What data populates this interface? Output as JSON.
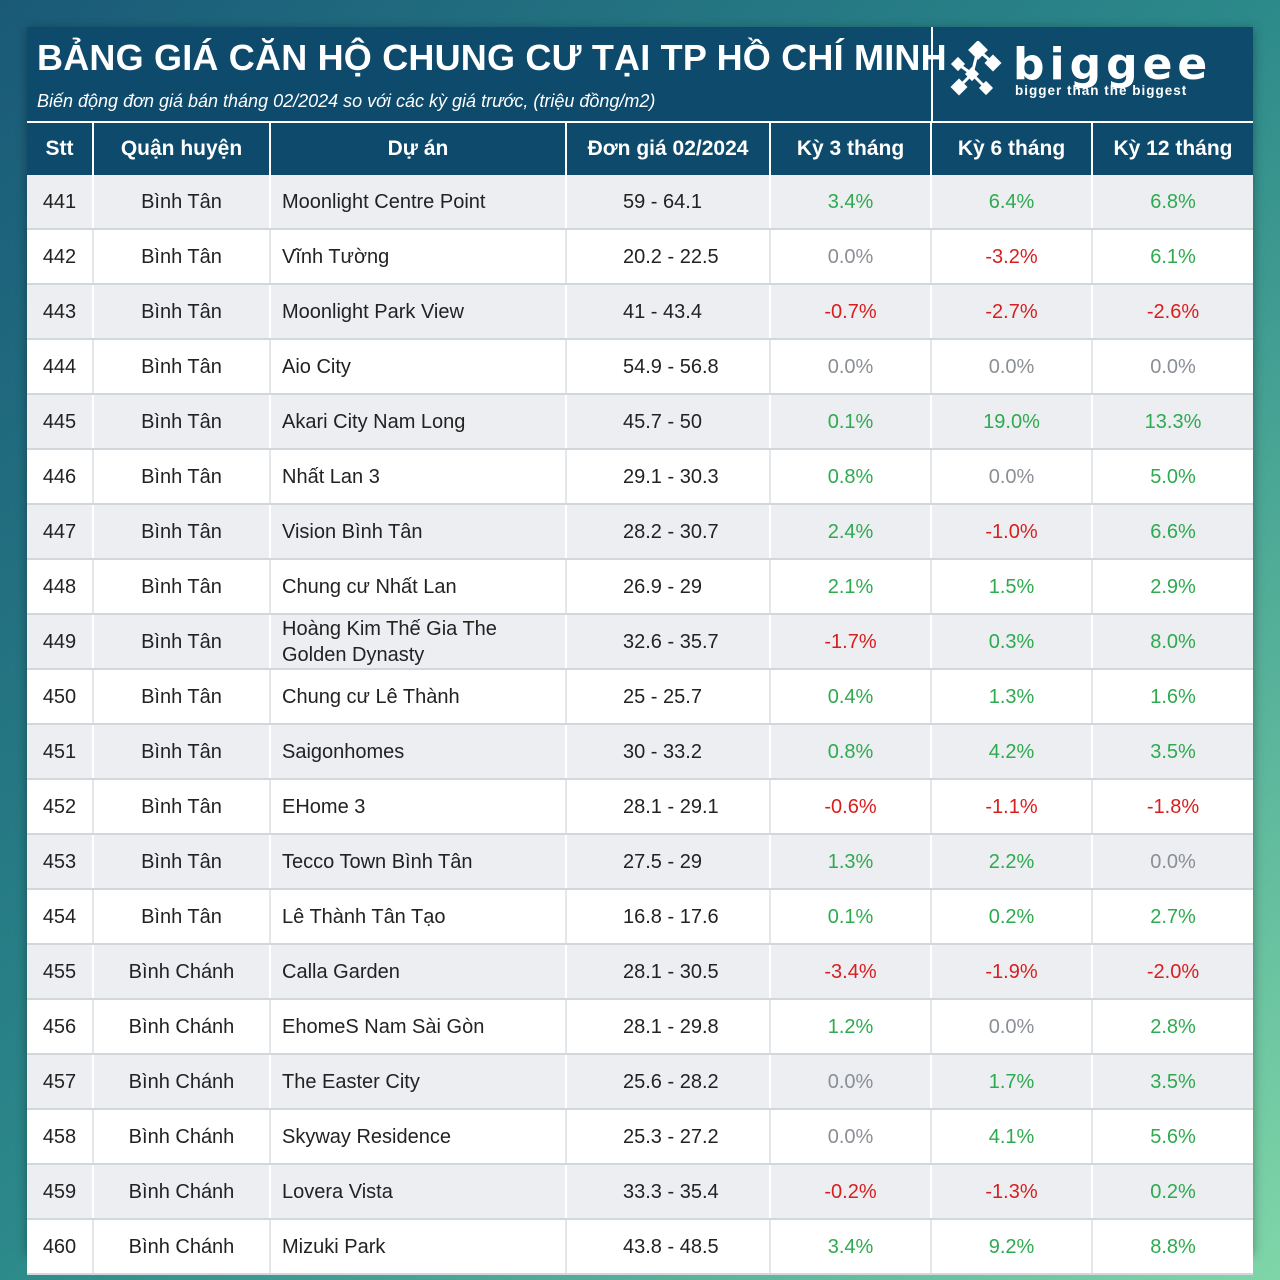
{
  "header": {
    "title": "BẢNG GIÁ CĂN HỘ CHUNG CƯ TẠI TP HỒ CHÍ MINH",
    "subtitle": "Biến động đơn giá bán tháng 02/2024 so với các kỳ giá trước, (triệu đồng/m2)"
  },
  "logo": {
    "word": "biggee",
    "tagline": "bigger than the biggest",
    "icon": "biggee-logo-icon"
  },
  "colors": {
    "header_bg": "#0d4a6b",
    "positive": "#2eaa4f",
    "negative": "#d81e1e",
    "zero": "#8a8f95"
  },
  "table": {
    "columns": [
      "Stt",
      "Quận huyện",
      "Dự án",
      "Đơn giá 02/2024",
      "Kỳ 3 tháng",
      "Kỳ 6 tháng",
      "Kỳ 12 tháng"
    ],
    "rows": [
      [
        "441",
        "Bình Tân",
        "Moonlight Centre Point",
        "59 - 64.1",
        "3.4%",
        "6.4%",
        "6.8%"
      ],
      [
        "442",
        "Bình Tân",
        "Vĩnh Tường",
        "20.2 - 22.5",
        "0.0%",
        "-3.2%",
        "6.1%"
      ],
      [
        "443",
        "Bình Tân",
        "Moonlight Park View",
        "41 - 43.4",
        "-0.7%",
        "-2.7%",
        "-2.6%"
      ],
      [
        "444",
        "Bình Tân",
        "Aio City",
        "54.9 - 56.8",
        "0.0%",
        "0.0%",
        "0.0%"
      ],
      [
        "445",
        "Bình Tân",
        "Akari City Nam Long",
        "45.7 - 50",
        "0.1%",
        "19.0%",
        "13.3%"
      ],
      [
        "446",
        "Bình Tân",
        "Nhất Lan 3",
        "29.1 - 30.3",
        "0.8%",
        "0.0%",
        "5.0%"
      ],
      [
        "447",
        "Bình Tân",
        "Vision Bình Tân",
        "28.2 - 30.7",
        "2.4%",
        "-1.0%",
        "6.6%"
      ],
      [
        "448",
        "Bình Tân",
        "Chung cư Nhất Lan",
        "26.9 - 29",
        "2.1%",
        "1.5%",
        "2.9%"
      ],
      [
        "449",
        "Bình Tân",
        "Hoàng Kim Thế Gia The Golden Dynasty",
        "32.6 - 35.7",
        "-1.7%",
        "0.3%",
        "8.0%"
      ],
      [
        "450",
        "Bình Tân",
        "Chung cư Lê Thành",
        "25 - 25.7",
        "0.4%",
        "1.3%",
        "1.6%"
      ],
      [
        "451",
        "Bình Tân",
        "Saigonhomes",
        "30 - 33.2",
        "0.8%",
        "4.2%",
        "3.5%"
      ],
      [
        "452",
        "Bình Tân",
        "EHome 3",
        "28.1 - 29.1",
        "-0.6%",
        "-1.1%",
        "-1.8%"
      ],
      [
        "453",
        "Bình Tân",
        "Tecco Town Bình Tân",
        "27.5 - 29",
        "1.3%",
        "2.2%",
        "0.0%"
      ],
      [
        "454",
        "Bình Tân",
        "Lê Thành Tân Tạo",
        "16.8 - 17.6",
        "0.1%",
        "0.2%",
        "2.7%"
      ],
      [
        "455",
        "Bình Chánh",
        "Calla Garden",
        "28.1 - 30.5",
        "-3.4%",
        "-1.9%",
        "-2.0%"
      ],
      [
        "456",
        "Bình Chánh",
        "EhomeS Nam Sài Gòn",
        "28.1 - 29.8",
        "1.2%",
        "0.0%",
        "2.8%"
      ],
      [
        "457",
        "Bình Chánh",
        "The Easter City",
        "25.6 - 28.2",
        "0.0%",
        "1.7%",
        "3.5%"
      ],
      [
        "458",
        "Bình Chánh",
        "Skyway Residence",
        "25.3 - 27.2",
        "0.0%",
        "4.1%",
        "5.6%"
      ],
      [
        "459",
        "Bình Chánh",
        "Lovera Vista",
        "33.3 - 35.4",
        "-0.2%",
        "-1.3%",
        "0.2%"
      ],
      [
        "460",
        "Bình Chánh",
        "Mizuki Park",
        "43.8 - 48.5",
        "3.4%",
        "9.2%",
        "8.8%"
      ]
    ]
  }
}
